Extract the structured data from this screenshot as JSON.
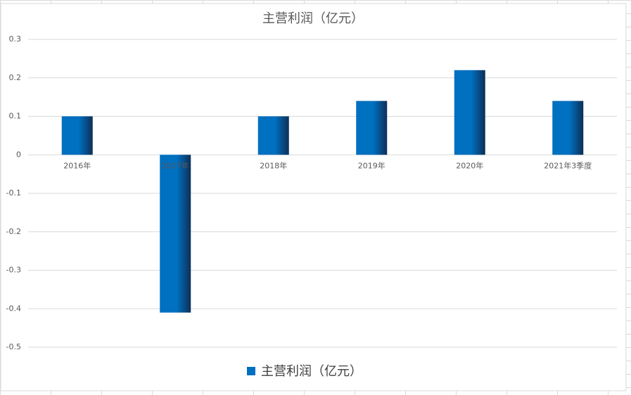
{
  "chart_data": {
    "type": "bar",
    "title": "主营利润（亿元）",
    "categories": [
      "2016年",
      "2017年",
      "2018年",
      "2019年",
      "2020年",
      "2021年3季度"
    ],
    "series": [
      {
        "name": "主营利润（亿元）",
        "color": "#0070c0",
        "values": [
          0.1,
          -0.41,
          0.1,
          0.14,
          0.22,
          0.14
        ]
      }
    ],
    "ylim": [
      -0.5,
      0.3
    ],
    "yticks": [
      -0.5,
      -0.4,
      -0.3,
      -0.2,
      -0.1,
      0,
      0.1,
      0.2,
      0.3
    ],
    "grid": true,
    "legend": "bottom"
  }
}
